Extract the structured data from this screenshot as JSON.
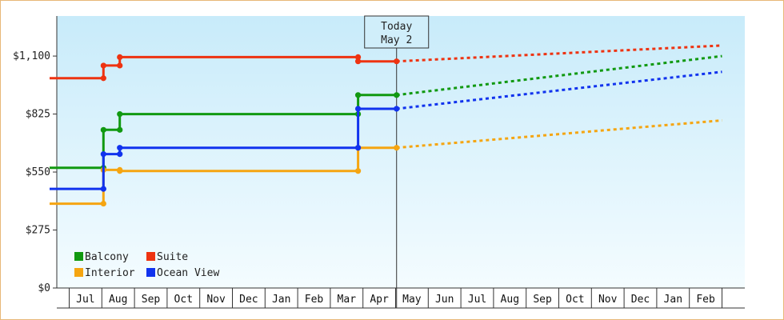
{
  "chart_data": {
    "type": "line",
    "y_ticks": [
      "$0",
      "$275",
      "$550",
      "$825",
      "$1,100"
    ],
    "y_tick_values": [
      0,
      275,
      550,
      825,
      1100
    ],
    "ylim": [
      0,
      1290
    ],
    "months": [
      "Jul",
      "Aug",
      "Sep",
      "Oct",
      "Nov",
      "Dec",
      "Jan",
      "Feb",
      "Mar",
      "Apr",
      "May",
      "Jun",
      "Jul",
      "Aug",
      "Sep",
      "Oct",
      "Nov",
      "Dec",
      "Jan",
      "Feb"
    ],
    "today_label": [
      "Today",
      "May 2"
    ],
    "today_month_index": 10.03,
    "grid": false,
    "legend_position": "bottom-left",
    "series": [
      {
        "name": "Balcony",
        "color": "#119911",
        "history": [
          [
            -0.6,
            570
          ],
          [
            1.05,
            570
          ],
          [
            1.05,
            750
          ],
          [
            1.55,
            750
          ],
          [
            1.55,
            825
          ],
          [
            8.85,
            825
          ],
          [
            8.85,
            915
          ],
          [
            10.03,
            915
          ]
        ],
        "forecast": [
          [
            10.03,
            915
          ],
          [
            20.0,
            1100
          ]
        ]
      },
      {
        "name": "Suite",
        "color": "#ee3311",
        "history": [
          [
            -0.6,
            995
          ],
          [
            1.05,
            995
          ],
          [
            1.05,
            1055
          ],
          [
            1.55,
            1055
          ],
          [
            1.55,
            1095
          ],
          [
            8.85,
            1095
          ],
          [
            8.85,
            1075
          ],
          [
            10.03,
            1075
          ]
        ],
        "forecast": [
          [
            10.03,
            1075
          ],
          [
            20.0,
            1150
          ]
        ]
      },
      {
        "name": "Interior",
        "color": "#f5a511",
        "history": [
          [
            -0.6,
            400
          ],
          [
            1.05,
            400
          ],
          [
            1.05,
            560
          ],
          [
            1.55,
            560
          ],
          [
            1.55,
            555
          ],
          [
            8.85,
            555
          ],
          [
            8.85,
            665
          ],
          [
            10.03,
            665
          ]
        ],
        "forecast": [
          [
            10.03,
            665
          ],
          [
            20.0,
            795
          ]
        ]
      },
      {
        "name": "Ocean View",
        "color": "#1133ee",
        "history": [
          [
            -0.6,
            470
          ],
          [
            1.05,
            470
          ],
          [
            1.05,
            635
          ],
          [
            1.55,
            635
          ],
          [
            1.55,
            665
          ],
          [
            8.85,
            665
          ],
          [
            8.85,
            850
          ],
          [
            10.03,
            850
          ]
        ],
        "forecast": [
          [
            10.03,
            850
          ],
          [
            20.0,
            1025
          ]
        ]
      }
    ],
    "legend_order": [
      "Balcony",
      "Suite",
      "Interior",
      "Ocean View"
    ]
  }
}
